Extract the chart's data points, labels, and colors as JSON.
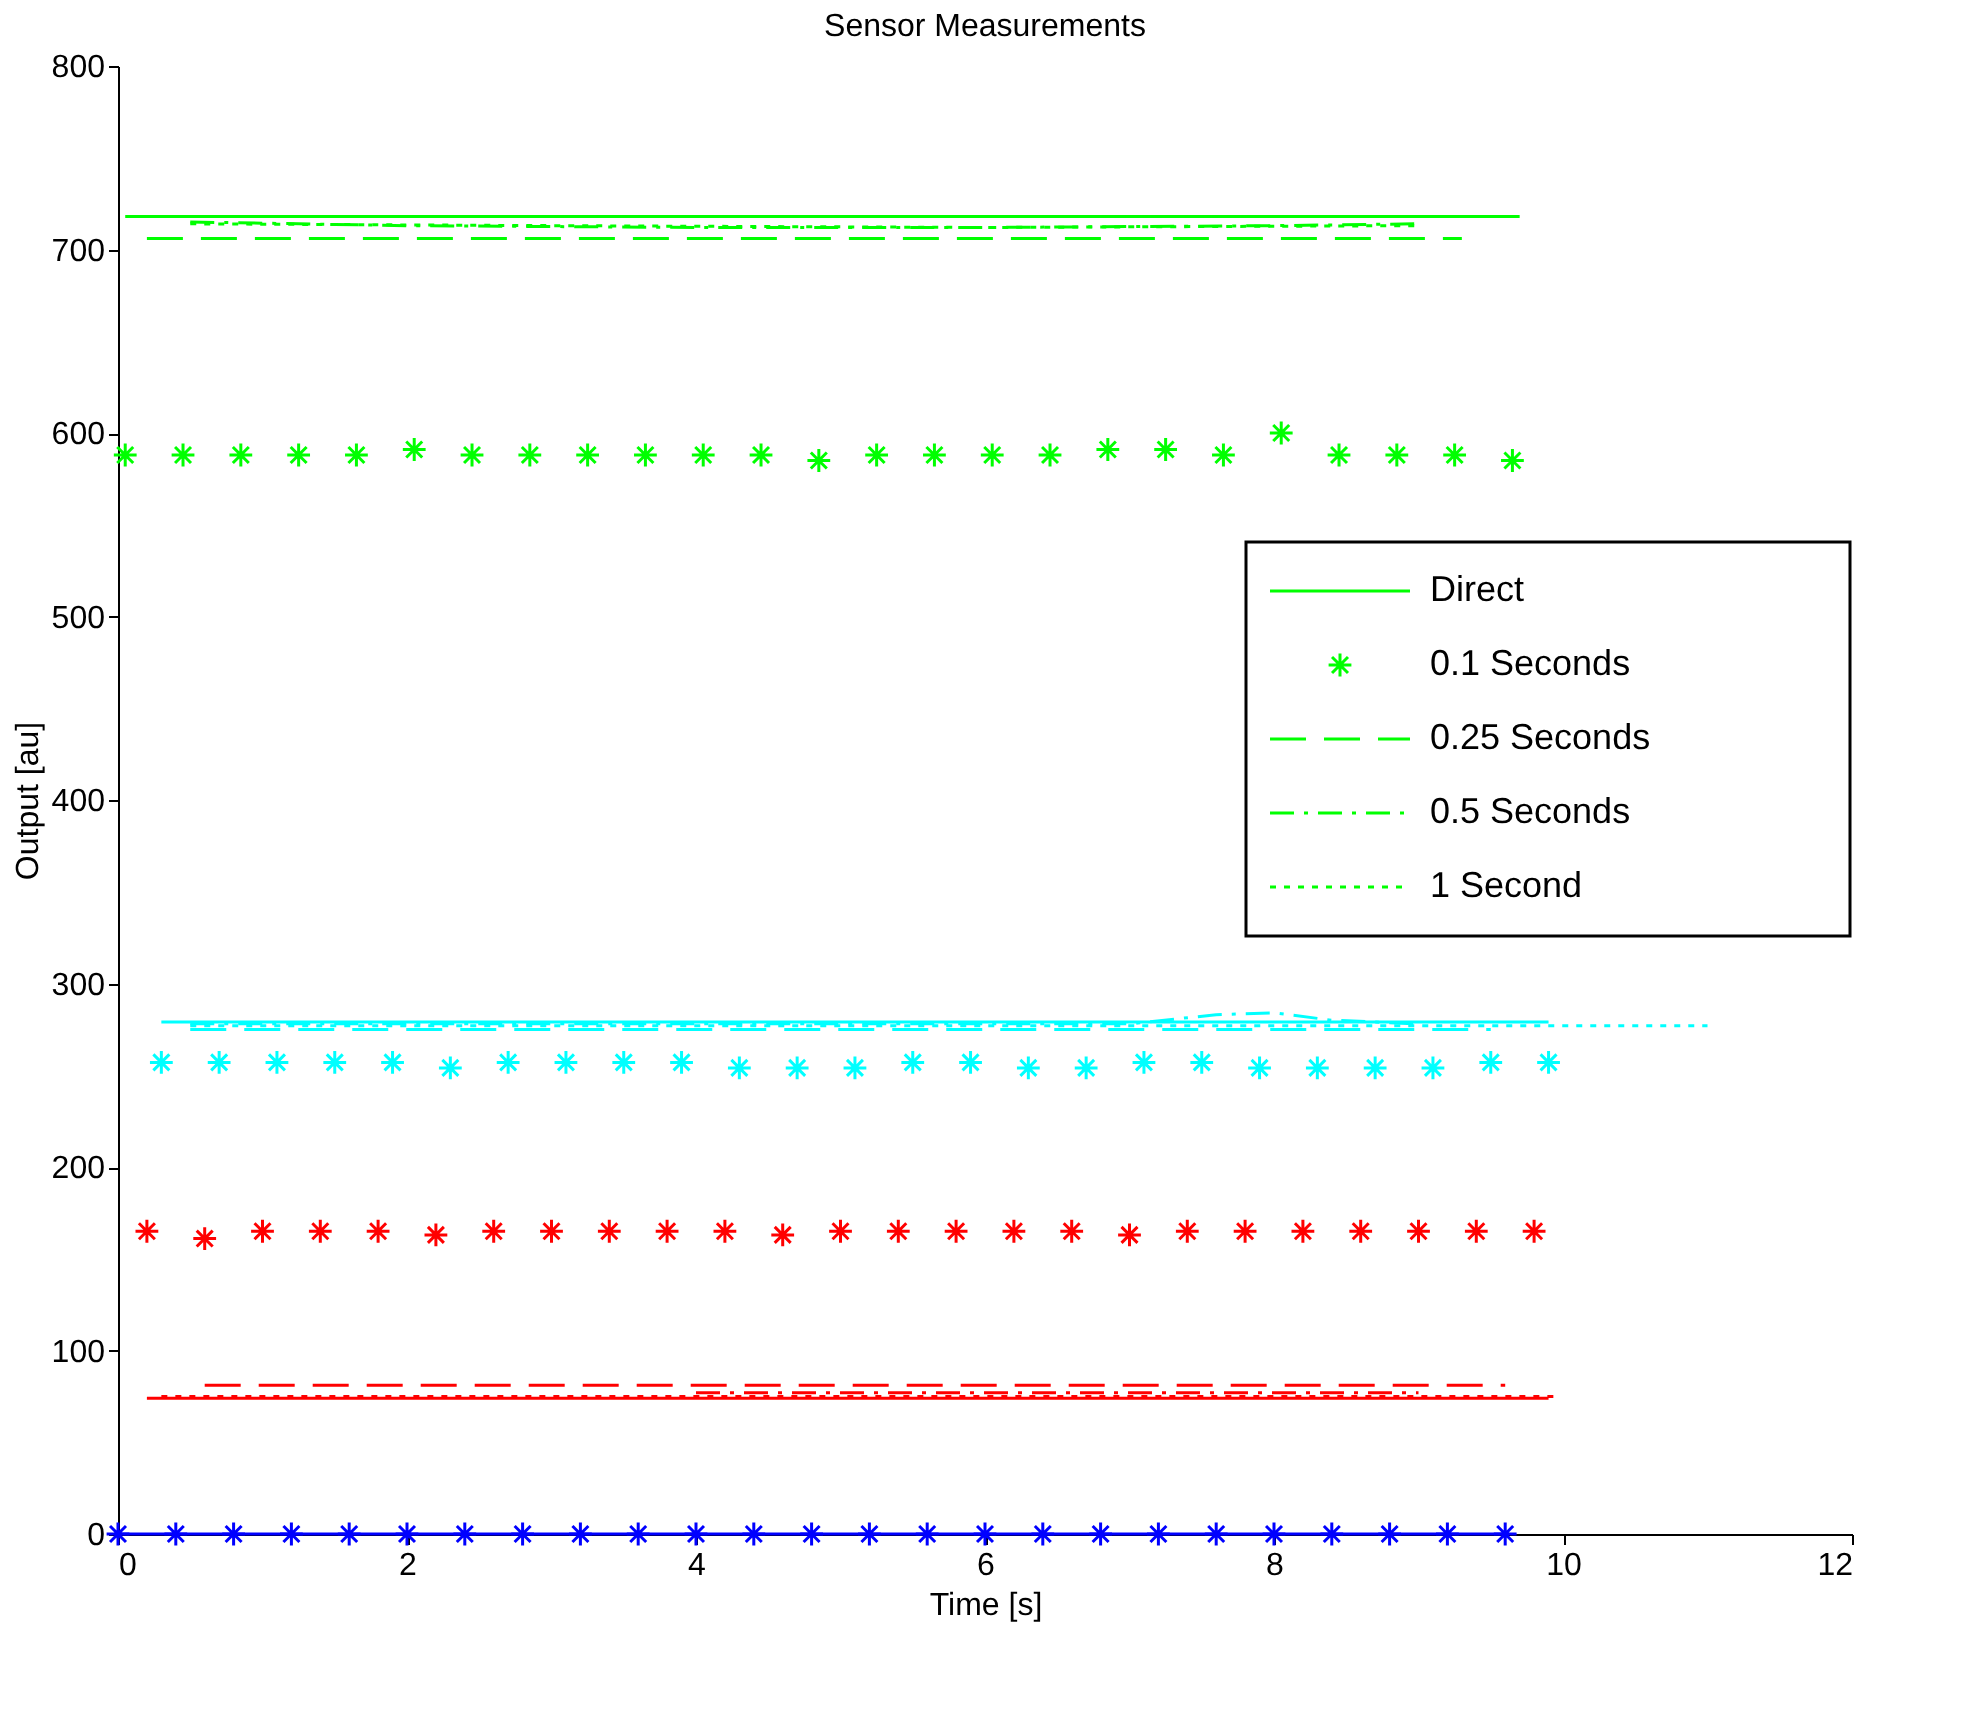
{
  "chart_data": {
    "type": "line",
    "title": "Sensor Measurements",
    "xlabel": "Time [s]",
    "ylabel": "Output [au]",
    "xlim": [
      0,
      12
    ],
    "xticks": [
      0,
      2,
      4,
      6,
      8,
      10,
      12
    ],
    "ylim": [
      0,
      800
    ],
    "yticks": [
      0,
      100,
      200,
      300,
      400,
      500,
      600,
      700,
      800
    ],
    "grid": false,
    "legend": "right",
    "series": [
      {
        "name": "Direct",
        "line_style": "solid",
        "color": "#00ff00",
        "x": [
          0.05,
          5,
          9.7
        ],
        "values": [
          718,
          718,
          718
        ]
      },
      {
        "name": "0.1 Seconds",
        "type": "scatter",
        "marker": "cross",
        "color": "#00ff00",
        "x": [
          0.05,
          0.45,
          0.85,
          1.25,
          1.65,
          2.05,
          2.45,
          2.85,
          3.25,
          3.65,
          4.05,
          4.45,
          4.85,
          5.25,
          5.65,
          6.05,
          6.45,
          6.85,
          7.25,
          7.65,
          8.05,
          8.45,
          8.85,
          9.25,
          9.65
        ],
        "values": [
          588,
          588,
          588,
          588,
          588,
          591,
          588,
          588,
          588,
          588,
          588,
          588,
          585,
          588,
          588,
          588,
          588,
          591,
          591,
          588,
          600,
          588,
          588,
          588,
          585
        ]
      },
      {
        "name": "0.25 Seconds",
        "line_style": "dashed",
        "color": "#00ff00",
        "x": [
          0.2,
          5,
          9.3
        ],
        "values": [
          706,
          706,
          706
        ]
      },
      {
        "name": "0.5 Seconds",
        "line_style": "dashdot",
        "color": "#00ff00",
        "x": [
          0.5,
          2,
          4,
          6,
          8,
          9.0
        ],
        "values": [
          715,
          713,
          712,
          712,
          713,
          714
        ]
      },
      {
        "name": "1 Second",
        "line_style": "dotted",
        "color": "#00ff00",
        "x": [
          0.5,
          3,
          6,
          9.0
        ],
        "values": [
          714,
          713,
          712,
          713
        ]
      },
      {
        "line_style": "solid",
        "color": "#00ffff",
        "x": [
          0.3,
          5,
          9.9
        ],
        "values": [
          279,
          279,
          279
        ]
      },
      {
        "type": "scatter",
        "marker": "cross",
        "color": "#00ffff",
        "x": [
          0.3,
          0.7,
          1.1,
          1.5,
          1.9,
          2.3,
          2.7,
          3.1,
          3.5,
          3.9,
          4.3,
          4.7,
          5.1,
          5.5,
          5.9,
          6.3,
          6.7,
          7.1,
          7.5,
          7.9,
          8.3,
          8.7,
          9.1,
          9.5,
          9.9
        ],
        "values": [
          257,
          257,
          257,
          257,
          257,
          254,
          257,
          257,
          257,
          257,
          254,
          254,
          254,
          257,
          257,
          254,
          254,
          257,
          257,
          254,
          254,
          254,
          254,
          257,
          257
        ]
      },
      {
        "line_style": "dashed",
        "color": "#00ffff",
        "x": [
          0.5,
          5,
          9.5
        ],
        "values": [
          275,
          275,
          275
        ]
      },
      {
        "line_style": "dashdot",
        "color": "#00ffff",
        "x": [
          0.5,
          7,
          7.6,
          8.0,
          8.4,
          9.0
        ],
        "values": [
          278,
          278,
          283,
          284,
          280,
          278
        ]
      },
      {
        "line_style": "dotted",
        "color": "#00ffff",
        "x": [
          0.5,
          6,
          11.0
        ],
        "values": [
          277,
          277,
          277
        ]
      },
      {
        "line_style": "solid",
        "color": "#ff0000",
        "x": [
          0.2,
          5,
          9.9
        ],
        "values": [
          74,
          74,
          74
        ]
      },
      {
        "type": "scatter",
        "marker": "cross",
        "color": "#ff0000",
        "x": [
          0.2,
          0.6,
          1.0,
          1.4,
          1.8,
          2.2,
          2.6,
          3.0,
          3.4,
          3.8,
          4.2,
          4.6,
          5.0,
          5.4,
          5.8,
          6.2,
          6.6,
          7.0,
          7.4,
          7.8,
          8.2,
          8.6,
          9.0,
          9.4,
          9.8
        ],
        "values": [
          165,
          161,
          165,
          165,
          165,
          163,
          165,
          165,
          165,
          165,
          165,
          163,
          165,
          165,
          165,
          165,
          165,
          163,
          165,
          165,
          165,
          165,
          165,
          165,
          165
        ]
      },
      {
        "line_style": "dashed",
        "color": "#ff0000",
        "x": [
          0.6,
          5,
          9.6
        ],
        "values": [
          81,
          81,
          81
        ]
      },
      {
        "line_style": "dashdot",
        "color": "#ff0000",
        "x": [
          4.0,
          6.5,
          8.0,
          9.0
        ],
        "values": [
          77,
          77,
          77,
          77
        ]
      },
      {
        "line_style": "dotted",
        "color": "#ff0000",
        "x": [
          0.3,
          5,
          9.95
        ],
        "values": [
          75,
          75,
          75
        ]
      },
      {
        "type": "scatter",
        "marker": "cross",
        "color": "#0000ff",
        "x": [
          0,
          0.4,
          0.8,
          1.2,
          1.6,
          2.0,
          2.4,
          2.8,
          3.2,
          3.6,
          4.0,
          4.4,
          4.8,
          5.2,
          5.6,
          6.0,
          6.4,
          6.8,
          7.2,
          7.6,
          8.0,
          8.4,
          8.8,
          9.2,
          9.6
        ],
        "values": [
          0,
          0,
          0,
          0,
          0,
          0,
          0,
          0,
          0,
          0,
          0,
          0,
          0,
          0,
          0,
          0,
          0,
          0,
          0,
          0,
          0,
          0,
          0,
          0,
          0
        ]
      },
      {
        "line_style": "solid",
        "color": "#0000ff",
        "x": [
          0,
          5,
          9.6
        ],
        "values": [
          0,
          0,
          0
        ]
      }
    ]
  }
}
